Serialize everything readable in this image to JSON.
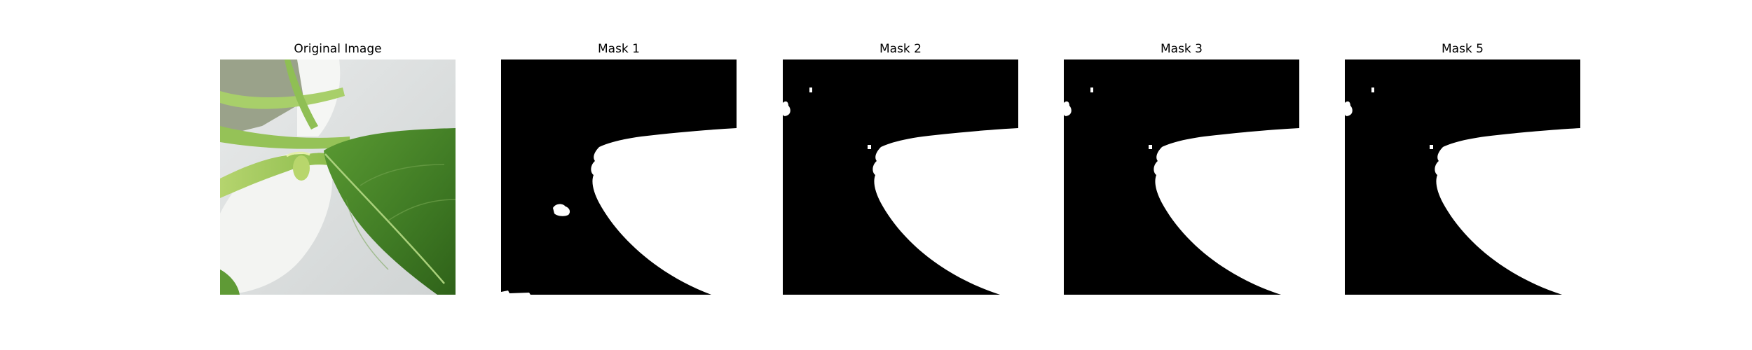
{
  "panels": [
    {
      "title": "Original Image",
      "content": "photo"
    },
    {
      "title": "Mask 1",
      "content": "mask"
    },
    {
      "title": "Mask 2",
      "content": "mask"
    },
    {
      "title": "Mask 3",
      "content": "mask"
    },
    {
      "title": "Mask 5",
      "content": "mask"
    }
  ],
  "colors": {
    "background": "#ffffff",
    "mask_foreground": "#ffffff",
    "mask_background": "#000000",
    "leaf_green": "#3f7a24",
    "stem_green": "#9cc65a",
    "pot_white": "#e6e8e6"
  }
}
